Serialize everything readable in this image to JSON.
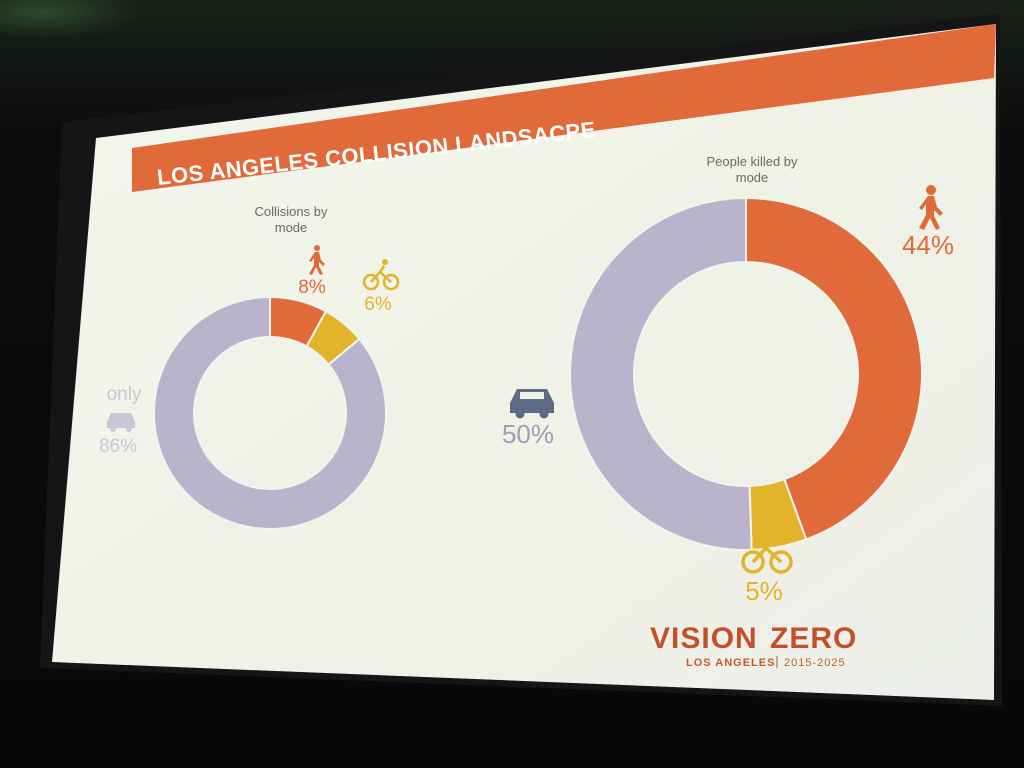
{
  "slide": {
    "title": "LOS ANGELES COLLISION LANDSACPE"
  },
  "colors": {
    "orange": "#e06a3a",
    "yellow": "#e3b32a",
    "lavender": "#b9b4cc",
    "title_bar": "#e06a3a",
    "slide_bg": "#f1f3ec"
  },
  "chart_data": [
    {
      "type": "pie",
      "donut": true,
      "title": "Collisions by mode",
      "slices": [
        {
          "label": "",
          "value": 8,
          "display": "8%",
          "icon": "pedestrian-icon",
          "color": "#e06a3a"
        },
        {
          "label": "",
          "value": 6,
          "display": "6%",
          "icon": "bicycle-icon",
          "color": "#e3b32a"
        },
        {
          "label": "only",
          "value": 86,
          "display": "86%",
          "icon": "car-icon",
          "color": "#b9b4cc"
        }
      ]
    },
    {
      "type": "pie",
      "donut": true,
      "title": "People killed by mode",
      "slices": [
        {
          "label": "",
          "value": 44,
          "display": "44%",
          "icon": "pedestrian-icon",
          "color": "#e06a3a"
        },
        {
          "label": "",
          "value": 5,
          "display": "5%",
          "icon": "bicycle-icon",
          "color": "#e3b32a"
        },
        {
          "label": "",
          "value": 50,
          "display": "50%",
          "icon": "car-icon",
          "color": "#b9b4cc"
        }
      ]
    }
  ],
  "logo": {
    "main_a": "VISION",
    "main_b": "ZERO",
    "city": "LOS ANGELES",
    "years": "2015-2025"
  }
}
